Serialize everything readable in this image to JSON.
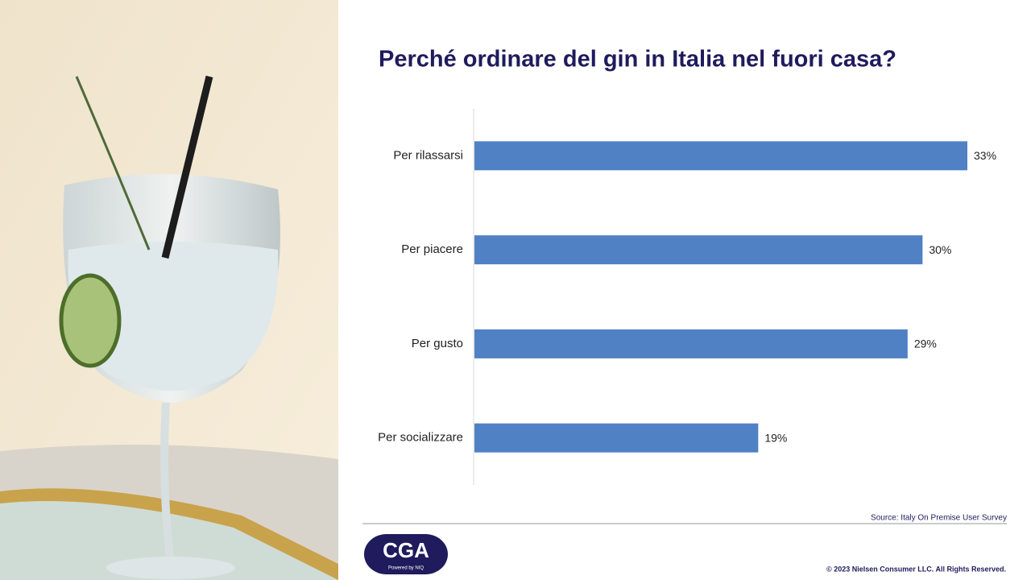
{
  "chart_data": {
    "type": "bar",
    "orientation": "horizontal",
    "title": "Perché ordinare del gin in Italia nel fuori casa?",
    "categories": [
      "Per rilassarsi",
      "Per piacere",
      "Per gusto",
      "Per socializzare"
    ],
    "values": [
      33,
      30,
      29,
      19
    ],
    "value_labels": [
      "33%",
      "30%",
      "29%",
      "19%"
    ],
    "color": "#4f81c4"
  },
  "footer": {
    "source": "Source: Italy On Premise User Survey",
    "copyright": "© 2023 Nielsen Consumer LLC. All Rights Reserved."
  },
  "logo": {
    "text": "CGA",
    "tagline": "Powered by NIQ"
  }
}
